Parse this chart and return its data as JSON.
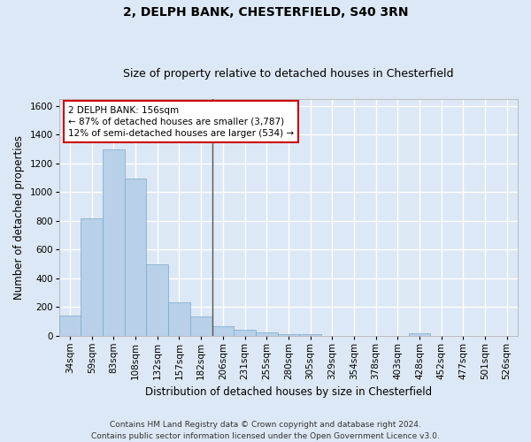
{
  "title": "2, DELPH BANK, CHESTERFIELD, S40 3RN",
  "subtitle": "Size of property relative to detached houses in Chesterfield",
  "xlabel": "Distribution of detached houses by size in Chesterfield",
  "ylabel": "Number of detached properties",
  "categories": [
    "34sqm",
    "59sqm",
    "83sqm",
    "108sqm",
    "132sqm",
    "157sqm",
    "182sqm",
    "206sqm",
    "231sqm",
    "255sqm",
    "280sqm",
    "305sqm",
    "329sqm",
    "354sqm",
    "378sqm",
    "403sqm",
    "428sqm",
    "452sqm",
    "477sqm",
    "501sqm",
    "526sqm"
  ],
  "values": [
    140,
    815,
    1295,
    1090,
    495,
    230,
    130,
    65,
    38,
    25,
    12,
    7,
    0,
    0,
    0,
    0,
    15,
    0,
    0,
    0,
    0
  ],
  "bar_color": "#b8d0e8",
  "bar_edge_color": "#7aaac8",
  "vline_index": 6.5,
  "vline_color": "#555555",
  "ylim": [
    0,
    1650
  ],
  "yticks": [
    0,
    200,
    400,
    600,
    800,
    1000,
    1200,
    1400,
    1600
  ],
  "annotation_text": "2 DELPH BANK: 156sqm\n← 87% of detached houses are smaller (3,787)\n12% of semi-detached houses are larger (534) →",
  "annotation_box_color": "#ffffff",
  "annotation_box_edge": "#cc0000",
  "footer_line1": "Contains HM Land Registry data © Crown copyright and database right 2024.",
  "footer_line2": "Contains public sector information licensed under the Open Government Licence v3.0.",
  "background_color": "#dce8f5",
  "plot_background": "#dce8f5",
  "grid_color": "#ffffff",
  "title_fontsize": 10,
  "subtitle_fontsize": 9,
  "xlabel_fontsize": 8.5,
  "ylabel_fontsize": 8.5,
  "tick_fontsize": 7.5,
  "footer_fontsize": 6.5,
  "annotation_fontsize": 7.5
}
